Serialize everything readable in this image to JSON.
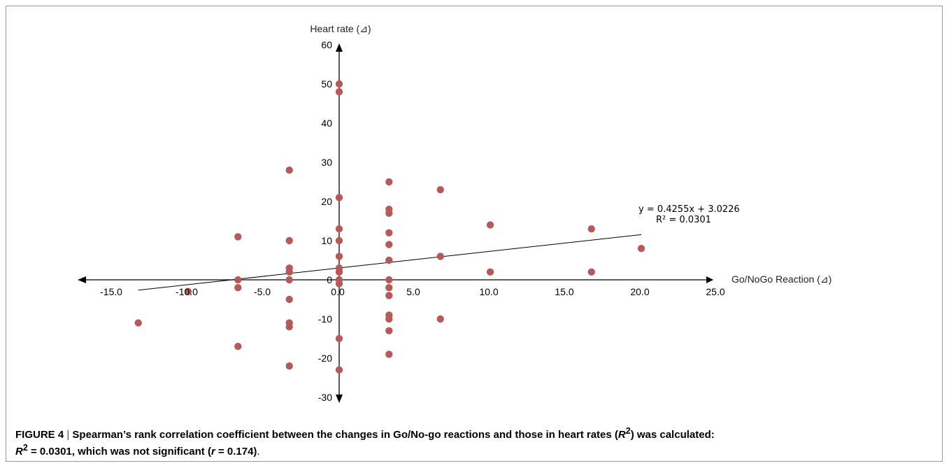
{
  "chart_data": {
    "type": "scatter",
    "xlabel": "Go/NoGo Reaction (⊿)",
    "ylabel": "Heart rate (⊿)",
    "xlim": [
      -15,
      25
    ],
    "ylim": [
      -30,
      60
    ],
    "x_ticks": [
      "-15.0",
      "-10.0",
      "-5.0",
      "0.0",
      "5.0",
      "10.0",
      "15.0",
      "20.0",
      "25.0"
    ],
    "y_ticks": [
      "60",
      "50",
      "40",
      "30",
      "20",
      "10",
      "0",
      "-10",
      "-20",
      "-30"
    ],
    "point_color": "#b55a5a",
    "grid": false,
    "points": [
      {
        "x": -13.3,
        "y": -11
      },
      {
        "x": -10.0,
        "y": -3
      },
      {
        "x": -6.7,
        "y": 11
      },
      {
        "x": -6.7,
        "y": 0
      },
      {
        "x": -6.7,
        "y": -2
      },
      {
        "x": -6.7,
        "y": -17
      },
      {
        "x": -3.3,
        "y": 28
      },
      {
        "x": -3.3,
        "y": 10
      },
      {
        "x": -3.3,
        "y": 3
      },
      {
        "x": -3.3,
        "y": 2
      },
      {
        "x": -3.3,
        "y": 0
      },
      {
        "x": -3.3,
        "y": -5
      },
      {
        "x": -3.3,
        "y": -11
      },
      {
        "x": -3.3,
        "y": -12
      },
      {
        "x": -3.3,
        "y": -22
      },
      {
        "x": 0.0,
        "y": 50
      },
      {
        "x": 0.0,
        "y": 48
      },
      {
        "x": 0.0,
        "y": 21
      },
      {
        "x": 0.0,
        "y": 13
      },
      {
        "x": 0.0,
        "y": 10
      },
      {
        "x": 0.0,
        "y": 6
      },
      {
        "x": 0.0,
        "y": 3
      },
      {
        "x": 0.0,
        "y": 2
      },
      {
        "x": 0.0,
        "y": 0
      },
      {
        "x": 0.0,
        "y": -1
      },
      {
        "x": 0.0,
        "y": -15
      },
      {
        "x": 0.0,
        "y": -23
      },
      {
        "x": 3.3,
        "y": 25
      },
      {
        "x": 3.3,
        "y": 18
      },
      {
        "x": 3.3,
        "y": 17
      },
      {
        "x": 3.3,
        "y": 12
      },
      {
        "x": 3.3,
        "y": 9
      },
      {
        "x": 3.3,
        "y": 5
      },
      {
        "x": 3.3,
        "y": 0
      },
      {
        "x": 3.3,
        "y": -2
      },
      {
        "x": 3.3,
        "y": -4
      },
      {
        "x": 3.3,
        "y": -9
      },
      {
        "x": 3.3,
        "y": -10
      },
      {
        "x": 3.3,
        "y": -13
      },
      {
        "x": 3.3,
        "y": -19
      },
      {
        "x": 6.7,
        "y": 23
      },
      {
        "x": 6.7,
        "y": 6
      },
      {
        "x": 6.7,
        "y": -10
      },
      {
        "x": 10.0,
        "y": 14
      },
      {
        "x": 10.0,
        "y": 2
      },
      {
        "x": 16.7,
        "y": 13
      },
      {
        "x": 16.7,
        "y": 2
      },
      {
        "x": 20.0,
        "y": 8
      }
    ],
    "trendline": {
      "slope": 0.4255,
      "intercept": 3.0226,
      "x_range": [
        -13.3,
        20.0
      ],
      "equation": "y = 0.4255x + 3.0226",
      "r2_label": "R² = 0.0301"
    }
  },
  "caption": {
    "label": "FIGURE 4",
    "separator": " | ",
    "line1": "Spearman’s rank correlation coefficient between the changes in Go/No-go reactions and those in heart rates (",
    "r_symbol": "R",
    "sup2": "2",
    "line1_end": ") was calculated:",
    "line2_r": "R",
    "line2_sup": "2",
    "line2_mid": " = 0.0301, which was not significant (",
    "line2_r_small": "r",
    "line2_end": " = 0.174)",
    "period": "."
  }
}
